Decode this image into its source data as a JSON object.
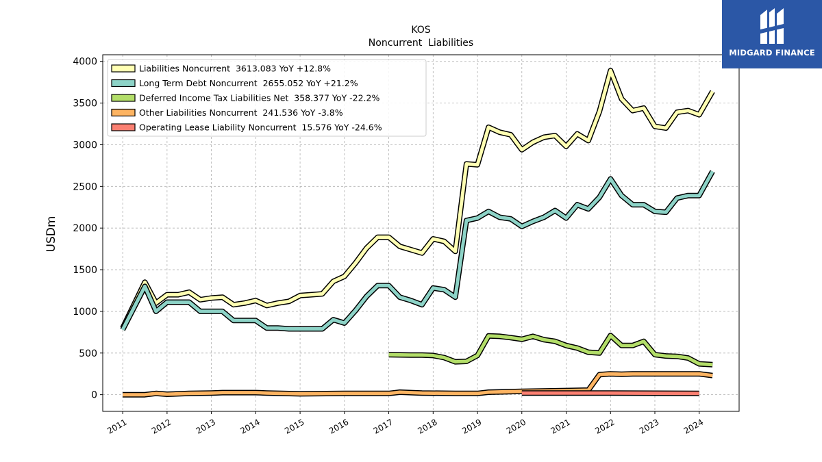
{
  "brand": {
    "name": "MIDGARD FINANCE",
    "bg": "#2b57a6"
  },
  "chart_data": {
    "type": "line",
    "title": "KOS",
    "subtitle": "Noncurrent  Liabilities",
    "xlabel": "",
    "ylabel": "USDm",
    "ylim": [
      -200,
      4080
    ],
    "xlim": [
      2010.55,
      2024.9
    ],
    "yticks": [
      0,
      500,
      1000,
      1500,
      2000,
      2500,
      3000,
      3500,
      4000
    ],
    "xticks": [
      2011,
      2012,
      2013,
      2014,
      2015,
      2016,
      2017,
      2018,
      2019,
      2020,
      2021,
      2022,
      2023,
      2024
    ],
    "grid": true,
    "legend_position": "top-left",
    "series": [
      {
        "name": "Liabilities Noncurrent  3613.083 YoY +12.8%",
        "color": "#ffffb3",
        "x": [
          2011.0,
          2011.5,
          2011.75,
          2012.0,
          2012.25,
          2012.5,
          2012.75,
          2013.0,
          2013.25,
          2013.5,
          2013.75,
          2014.0,
          2014.25,
          2014.5,
          2014.75,
          2015.0,
          2015.25,
          2015.5,
          2015.75,
          2016.0,
          2016.25,
          2016.5,
          2016.75,
          2017.0,
          2017.25,
          2017.5,
          2017.75,
          2018.0,
          2018.25,
          2018.5,
          2018.75,
          2019.0,
          2019.25,
          2019.5,
          2019.75,
          2020.0,
          2020.25,
          2020.5,
          2020.75,
          2021.0,
          2021.25,
          2021.5,
          2021.75,
          2022.0,
          2022.25,
          2022.5,
          2022.75,
          2023.0,
          2023.25,
          2023.5,
          2023.75,
          2024.0,
          2024.3
        ],
        "values": [
          800,
          1350,
          1100,
          1200,
          1200,
          1230,
          1140,
          1160,
          1170,
          1080,
          1100,
          1130,
          1070,
          1100,
          1120,
          1190,
          1200,
          1210,
          1360,
          1420,
          1580,
          1760,
          1890,
          1890,
          1780,
          1740,
          1700,
          1870,
          1840,
          1720,
          2770,
          2760,
          3210,
          3150,
          3120,
          2940,
          3030,
          3090,
          3110,
          2980,
          3130,
          3050,
          3400,
          3890,
          3550,
          3410,
          3440,
          3220,
          3200,
          3390,
          3410,
          3360,
          3640
        ]
      },
      {
        "name": "Long Term Debt Noncurrent  2655.052 YoY +21.2%",
        "color": "#8dd3c7",
        "x": [
          2011.0,
          2011.5,
          2011.75,
          2012.0,
          2012.25,
          2012.5,
          2012.75,
          2013.0,
          2013.25,
          2013.5,
          2013.75,
          2014.0,
          2014.25,
          2014.5,
          2014.75,
          2015.0,
          2015.25,
          2015.5,
          2015.75,
          2016.0,
          2016.25,
          2016.5,
          2016.75,
          2017.0,
          2017.25,
          2017.5,
          2017.75,
          2018.0,
          2018.25,
          2018.5,
          2018.75,
          2019.0,
          2019.25,
          2019.5,
          2019.75,
          2020.0,
          2020.25,
          2020.5,
          2020.75,
          2021.0,
          2021.25,
          2021.5,
          2021.75,
          2022.0,
          2022.25,
          2022.5,
          2022.75,
          2023.0,
          2023.25,
          2023.5,
          2023.75,
          2024.0,
          2024.3
        ],
        "values": [
          780,
          1300,
          1000,
          1110,
          1110,
          1110,
          1000,
          1000,
          1000,
          890,
          890,
          890,
          800,
          800,
          790,
          790,
          790,
          790,
          900,
          860,
          1010,
          1180,
          1310,
          1310,
          1170,
          1130,
          1080,
          1280,
          1260,
          1170,
          2090,
          2120,
          2200,
          2130,
          2110,
          2020,
          2080,
          2130,
          2210,
          2120,
          2280,
          2230,
          2370,
          2590,
          2390,
          2280,
          2280,
          2200,
          2190,
          2360,
          2390,
          2390,
          2680
        ]
      },
      {
        "name": "Deferred Income Tax Liabilities Net  358.377 YoY -22.2%",
        "color": "#b3de69",
        "x": [
          2017.0,
          2017.5,
          2017.75,
          2018.0,
          2018.25,
          2018.5,
          2018.75,
          2019.0,
          2019.25,
          2019.5,
          2019.75,
          2020.0,
          2020.25,
          2020.5,
          2020.75,
          2021.0,
          2021.25,
          2021.5,
          2021.75,
          2022.0,
          2022.25,
          2022.5,
          2022.75,
          2023.0,
          2023.25,
          2023.5,
          2023.75,
          2024.0,
          2024.3
        ],
        "values": [
          480,
          475,
          475,
          470,
          445,
          395,
          400,
          470,
          705,
          700,
          685,
          665,
          700,
          660,
          640,
          590,
          560,
          510,
          500,
          710,
          590,
          590,
          640,
          480,
          465,
          460,
          440,
          370,
          360
        ]
      },
      {
        "name": "Other Liabilities Noncurrent  241.536 YoY -3.8%",
        "color": "#fdb462",
        "x": [
          2011.0,
          2011.5,
          2011.75,
          2012.0,
          2012.5,
          2013.0,
          2013.25,
          2014.0,
          2014.25,
          2015.0,
          2016.0,
          2017.0,
          2017.25,
          2017.75,
          2018.5,
          2019.0,
          2019.25,
          2020.0,
          2021.0,
          2021.5,
          2021.75,
          2022.0,
          2022.25,
          2022.5,
          2023.0,
          2024.0,
          2024.3
        ],
        "values": [
          0,
          0,
          15,
          5,
          15,
          20,
          25,
          25,
          20,
          10,
          15,
          15,
          30,
          20,
          15,
          15,
          30,
          40,
          50,
          55,
          240,
          250,
          245,
          250,
          250,
          250,
          230
        ]
      },
      {
        "name": "Operating Lease Liability Noncurrent  15.576 YoY -24.6%",
        "color": "#fb8072",
        "x": [
          2020.0,
          2021.0,
          2022.0,
          2023.0,
          2024.0
        ],
        "values": [
          20,
          20,
          20,
          18,
          15
        ]
      }
    ]
  }
}
